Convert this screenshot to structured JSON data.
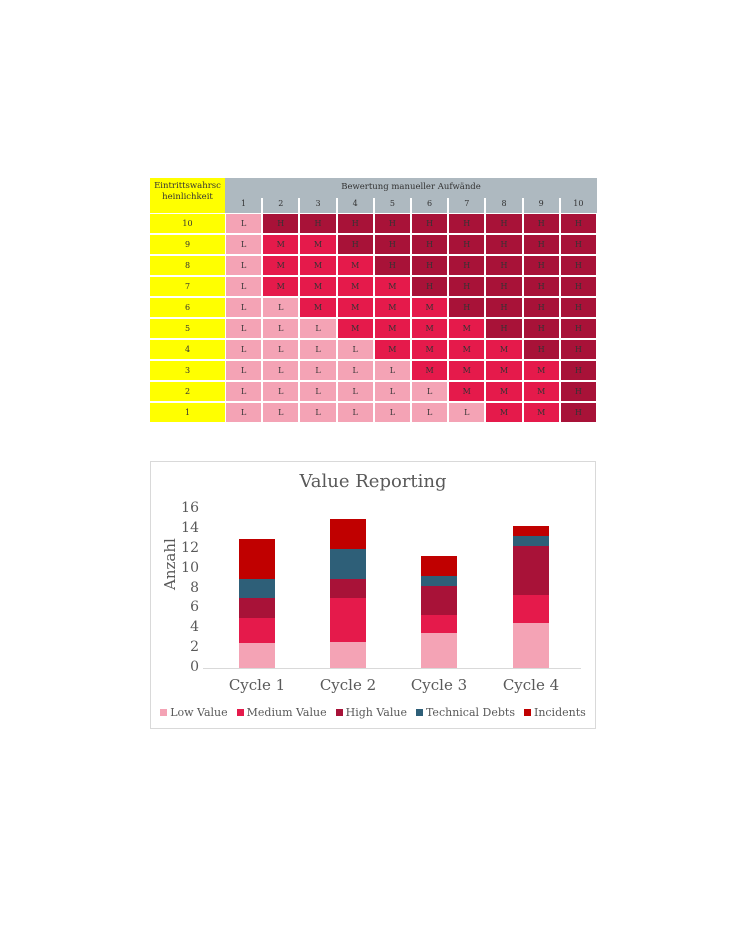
{
  "matrix": {
    "corner_label": "Eintrittswahrsc heinlichkeit",
    "header_title": "Bewertung manueller Aufwände",
    "columns": [
      "1",
      "2",
      "3",
      "4",
      "5",
      "6",
      "7",
      "8",
      "9",
      "10"
    ],
    "rows": [
      {
        "label": "10",
        "cells": [
          "L",
          "H",
          "H",
          "H",
          "H",
          "H",
          "H",
          "H",
          "H",
          "H"
        ]
      },
      {
        "label": "9",
        "cells": [
          "L",
          "M",
          "M",
          "H",
          "H",
          "H",
          "H",
          "H",
          "H",
          "H"
        ]
      },
      {
        "label": "8",
        "cells": [
          "L",
          "M",
          "M",
          "M",
          "H",
          "H",
          "H",
          "H",
          "H",
          "H"
        ]
      },
      {
        "label": "7",
        "cells": [
          "L",
          "M",
          "M",
          "M",
          "M",
          "H",
          "H",
          "H",
          "H",
          "H"
        ]
      },
      {
        "label": "6",
        "cells": [
          "L",
          "L",
          "M",
          "M",
          "M",
          "M",
          "H",
          "H",
          "H",
          "H"
        ]
      },
      {
        "label": "5",
        "cells": [
          "L",
          "L",
          "L",
          "M",
          "M",
          "M",
          "M",
          "H",
          "H",
          "H"
        ]
      },
      {
        "label": "4",
        "cells": [
          "L",
          "L",
          "L",
          "L",
          "M",
          "M",
          "M",
          "M",
          "H",
          "H"
        ]
      },
      {
        "label": "3",
        "cells": [
          "L",
          "L",
          "L",
          "L",
          "L",
          "M",
          "M",
          "M",
          "M",
          "H"
        ]
      },
      {
        "label": "2",
        "cells": [
          "L",
          "L",
          "L",
          "L",
          "L",
          "L",
          "M",
          "M",
          "M",
          "H"
        ]
      },
      {
        "label": "1",
        "cells": [
          "L",
          "L",
          "L",
          "L",
          "L",
          "L",
          "L",
          "M",
          "M",
          "H"
        ]
      }
    ],
    "colors": {
      "L": "#f4a3b5",
      "M": "#e51a4b",
      "H": "#a81238",
      "row_header": "#ffff00",
      "col_header": "#aeb9c0"
    }
  },
  "chart_data": {
    "type": "bar",
    "stacked": true,
    "title": "Value Reporting",
    "xlabel": "",
    "ylabel": "Anzahl",
    "ylim": [
      0,
      16
    ],
    "yticks": [
      0,
      2,
      4,
      6,
      8,
      10,
      12,
      14,
      16
    ],
    "grid": false,
    "legend_position": "bottom",
    "categories": [
      "Cycle 1",
      "Cycle 2",
      "Cycle 3",
      "Cycle 4"
    ],
    "series": [
      {
        "name": "Low Value",
        "color": "#f4a3b5",
        "values": [
          2.5,
          2.6,
          3.5,
          4.5
        ]
      },
      {
        "name": "Medium Value",
        "color": "#e51a4b",
        "values": [
          2.5,
          4.4,
          1.8,
          2.8
        ]
      },
      {
        "name": "High Value",
        "color": "#a81238",
        "values": [
          2,
          2,
          3,
          5
        ]
      },
      {
        "name": "Technical Debts",
        "color": "#2e5f78",
        "values": [
          2,
          3,
          1,
          1
        ]
      },
      {
        "name": "Incidents",
        "color": "#c00000",
        "values": [
          4,
          3,
          2,
          1
        ]
      }
    ]
  }
}
